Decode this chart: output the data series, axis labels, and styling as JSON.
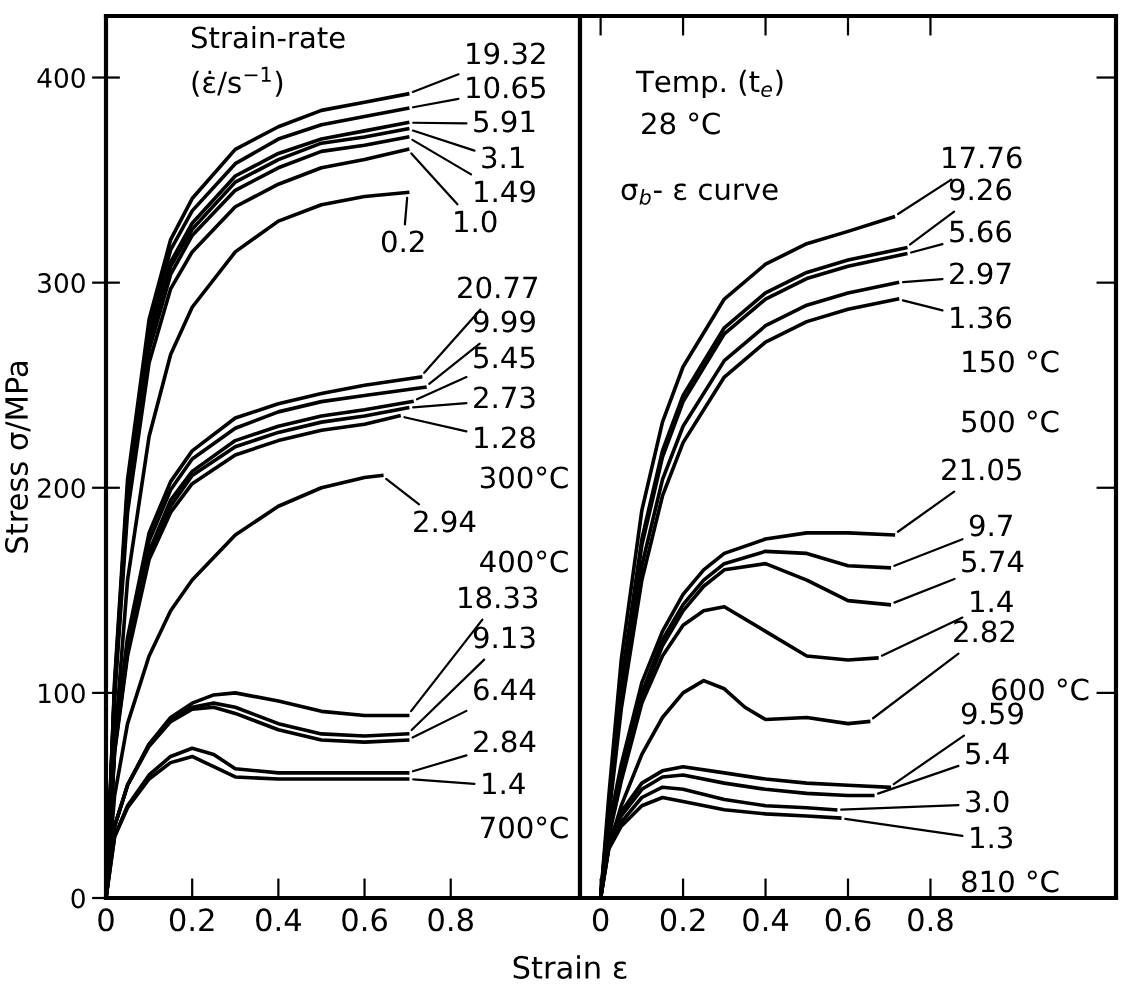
{
  "chart_data": [
    {
      "type": "line",
      "xlabel": "Strain ε",
      "ylabel": "Stress σ/MPa",
      "xlim": [
        0,
        1.1
      ],
      "ylim": [
        0,
        430
      ],
      "xticks": [
        0,
        0.2,
        0.4,
        0.6,
        0.8
      ],
      "yticks": [
        0,
        100,
        200,
        300,
        400
      ],
      "legend": "right",
      "grid": false,
      "annotations": [
        "Strain-rate",
        "(ε̇/s$^{−1}$)",
        "300°C",
        "400°C",
        "700°C"
      ],
      "series": [
        {
          "name": "19.32",
          "color": "#000000",
          "x": [
            0,
            0.02,
            0.05,
            0.1,
            0.15,
            0.2,
            0.3,
            0.4,
            0.5,
            0.6,
            0.7
          ],
          "values": [
            0,
            106,
            204,
            282,
            321,
            341,
            365,
            376,
            384,
            388,
            392
          ]
        },
        {
          "name": "10.65",
          "color": "#000000",
          "x": [
            0,
            0.02,
            0.05,
            0.1,
            0.15,
            0.2,
            0.3,
            0.4,
            0.5,
            0.6,
            0.7
          ],
          "values": [
            0,
            104,
            200,
            277,
            316,
            335,
            358,
            370,
            377,
            381,
            385
          ]
        },
        {
          "name": "5.91",
          "color": "#000000",
          "x": [
            0,
            0.02,
            0.05,
            0.1,
            0.15,
            0.2,
            0.3,
            0.4,
            0.5,
            0.6,
            0.7
          ],
          "values": [
            0,
            102,
            197,
            272,
            310,
            329,
            352,
            363,
            370,
            374,
            378
          ]
        },
        {
          "name": "3.1",
          "color": "#000000",
          "x": [
            0,
            0.02,
            0.05,
            0.1,
            0.15,
            0.2,
            0.3,
            0.4,
            0.5,
            0.6,
            0.7
          ],
          "values": [
            0,
            101,
            195,
            270,
            308,
            326,
            349,
            360,
            368,
            371,
            375
          ]
        },
        {
          "name": "1.49",
          "color": "#000000",
          "x": [
            0,
            0.02,
            0.05,
            0.1,
            0.15,
            0.2,
            0.3,
            0.4,
            0.5,
            0.6,
            0.7
          ],
          "values": [
            0,
            100,
            193,
            267,
            304,
            323,
            345,
            356,
            364,
            367,
            371
          ]
        },
        {
          "name": "1.0",
          "color": "#000000",
          "x": [
            0,
            0.02,
            0.05,
            0.1,
            0.15,
            0.2,
            0.3,
            0.4,
            0.5,
            0.6,
            0.7
          ],
          "values": [
            0,
            98,
            188,
            261,
            297,
            315,
            337,
            348,
            356,
            360,
            365
          ]
        },
        {
          "name": "0.2",
          "color": "#000000",
          "x": [
            0,
            0.02,
            0.05,
            0.1,
            0.15,
            0.2,
            0.3,
            0.4,
            0.5,
            0.6,
            0.7
          ],
          "values": [
            0,
            75,
            155,
            225,
            265,
            288,
            315,
            330,
            338,
            342,
            344
          ]
        },
        {
          "name": "20.77",
          "color": "#000000",
          "x": [
            0,
            0.02,
            0.05,
            0.1,
            0.15,
            0.2,
            0.3,
            0.4,
            0.5,
            0.6,
            0.73
          ],
          "values": [
            0,
            76,
            127,
            178,
            203,
            218,
            234,
            241,
            246,
            250,
            254
          ]
        },
        {
          "name": "9.99",
          "color": "#000000",
          "x": [
            0,
            0.02,
            0.05,
            0.1,
            0.15,
            0.2,
            0.3,
            0.4,
            0.5,
            0.6,
            0.74
          ],
          "values": [
            0,
            75,
            125,
            174,
            199,
            214,
            229,
            237,
            242,
            245,
            249
          ]
        },
        {
          "name": "5.45",
          "color": "#000000",
          "x": [
            0,
            0.02,
            0.05,
            0.1,
            0.15,
            0.2,
            0.3,
            0.4,
            0.5,
            0.6,
            0.71
          ],
          "values": [
            0,
            73,
            121,
            169,
            194,
            208,
            223,
            230,
            235,
            238,
            242
          ]
        },
        {
          "name": "2.73",
          "color": "#000000",
          "x": [
            0,
            0.02,
            0.05,
            0.1,
            0.15,
            0.2,
            0.3,
            0.4,
            0.5,
            0.6,
            0.7
          ],
          "values": [
            0,
            72,
            120,
            167,
            191,
            206,
            220,
            227,
            232,
            235,
            239
          ]
        },
        {
          "name": "1.28",
          "color": "#000000",
          "x": [
            0,
            0.02,
            0.05,
            0.1,
            0.15,
            0.2,
            0.3,
            0.4,
            0.5,
            0.6,
            0.68
          ],
          "values": [
            0,
            71,
            118,
            165,
            188,
            202,
            216,
            223,
            228,
            231,
            235
          ]
        },
        {
          "name": "2.94",
          "color": "#000000",
          "x": [
            0,
            0.02,
            0.05,
            0.1,
            0.15,
            0.2,
            0.3,
            0.4,
            0.5,
            0.6,
            0.64
          ],
          "values": [
            0,
            50,
            85,
            118,
            140,
            155,
            177,
            191,
            200,
            205,
            206
          ]
        },
        {
          "name": "18.33",
          "color": "#000000",
          "x": [
            0,
            0.02,
            0.05,
            0.1,
            0.15,
            0.2,
            0.25,
            0.3,
            0.4,
            0.5,
            0.6,
            0.7
          ],
          "values": [
            0,
            35,
            55,
            75,
            88,
            95,
            99,
            100,
            96,
            91,
            89,
            89
          ]
        },
        {
          "name": "9.13",
          "color": "#000000",
          "x": [
            0,
            0.02,
            0.05,
            0.1,
            0.15,
            0.2,
            0.25,
            0.3,
            0.4,
            0.5,
            0.6,
            0.7
          ],
          "values": [
            0,
            35,
            55,
            75,
            87,
            93,
            95,
            93,
            85,
            80,
            79,
            80
          ]
        },
        {
          "name": "6.44",
          "color": "#000000",
          "x": [
            0,
            0.02,
            0.05,
            0.1,
            0.15,
            0.2,
            0.25,
            0.3,
            0.4,
            0.5,
            0.6,
            0.7
          ],
          "values": [
            0,
            35,
            55,
            74,
            86,
            92,
            93,
            90,
            82,
            77,
            76,
            77
          ]
        },
        {
          "name": "2.84",
          "color": "#000000",
          "x": [
            0,
            0.02,
            0.05,
            0.1,
            0.15,
            0.2,
            0.25,
            0.3,
            0.4,
            0.5,
            0.6,
            0.7
          ],
          "values": [
            0,
            30,
            45,
            60,
            69,
            73,
            70,
            63,
            61,
            61,
            61,
            61
          ]
        },
        {
          "name": "1.4",
          "color": "#000000",
          "x": [
            0,
            0.02,
            0.05,
            0.1,
            0.15,
            0.2,
            0.25,
            0.3,
            0.4,
            0.5,
            0.6,
            0.7
          ],
          "values": [
            0,
            30,
            44,
            58,
            66,
            69,
            64,
            59,
            58,
            58,
            58,
            58
          ]
        }
      ]
    },
    {
      "type": "line",
      "xlim": [
        -0.05,
        1.25
      ],
      "ylim": [
        0,
        430
      ],
      "xticks": [
        0,
        0.2,
        0.4,
        0.6,
        0.8
      ],
      "yticks": [
        0,
        100,
        200,
        300,
        400
      ],
      "tick_labels": "x",
      "legend": "right",
      "grid": false,
      "annotations": [
        "Temp. (t$_{e}$)",
        "28 °C",
        "σ$_{b}$- ε curve",
        "150 °C",
        "500 °C",
        "600 °C",
        "810 °C"
      ],
      "series": [
        {
          "name": "17.76",
          "color": "#000000",
          "x": [
            0,
            0.02,
            0.05,
            0.1,
            0.15,
            0.2,
            0.3,
            0.4,
            0.5,
            0.6,
            0.71
          ],
          "values": [
            0,
            50,
            116,
            189,
            232,
            259,
            292,
            309,
            319,
            325,
            332
          ]
        },
        {
          "name": "9.26",
          "color": "#000000",
          "x": [
            0,
            0.02,
            0.05,
            0.1,
            0.15,
            0.2,
            0.3,
            0.4,
            0.5,
            0.6,
            0.74
          ],
          "values": [
            0,
            45,
            105,
            175,
            218,
            245,
            278,
            295,
            305,
            311,
            317
          ]
        },
        {
          "name": "5.66",
          "color": "#000000",
          "x": [
            0,
            0.02,
            0.05,
            0.1,
            0.15,
            0.2,
            0.3,
            0.4,
            0.5,
            0.6,
            0.74
          ],
          "values": [
            0,
            44,
            103,
            172,
            215,
            242,
            275,
            292,
            302,
            308,
            314
          ]
        },
        {
          "name": "2.97",
          "color": "#000000",
          "x": [
            0,
            0.02,
            0.05,
            0.1,
            0.15,
            0.2,
            0.3,
            0.4,
            0.5,
            0.6,
            0.72
          ],
          "values": [
            0,
            42,
            97,
            162,
            204,
            230,
            262,
            279,
            289,
            295,
            300
          ]
        },
        {
          "name": "1.36",
          "color": "#000000",
          "x": [
            0,
            0.02,
            0.05,
            0.1,
            0.15,
            0.2,
            0.3,
            0.4,
            0.5,
            0.6,
            0.72
          ],
          "values": [
            0,
            40,
            92,
            155,
            196,
            222,
            254,
            271,
            281,
            287,
            292
          ]
        },
        {
          "name": "21.05",
          "color": "#000000",
          "x": [
            0,
            0.02,
            0.05,
            0.1,
            0.15,
            0.2,
            0.25,
            0.3,
            0.4,
            0.5,
            0.6,
            0.71
          ],
          "values": [
            0,
            35,
            65,
            105,
            130,
            148,
            160,
            168,
            175,
            178,
            178,
            177
          ]
        },
        {
          "name": "9.7",
          "color": "#000000",
          "x": [
            0,
            0.02,
            0.05,
            0.1,
            0.15,
            0.2,
            0.25,
            0.3,
            0.4,
            0.5,
            0.6,
            0.7
          ],
          "values": [
            0,
            33,
            62,
            100,
            126,
            143,
            155,
            163,
            169,
            168,
            162,
            161
          ]
        },
        {
          "name": "5.74",
          "color": "#000000",
          "x": [
            0,
            0.02,
            0.05,
            0.1,
            0.15,
            0.2,
            0.25,
            0.3,
            0.4,
            0.5,
            0.6,
            0.7
          ],
          "values": [
            0,
            32,
            60,
            98,
            123,
            140,
            152,
            160,
            163,
            155,
            145,
            143
          ]
        },
        {
          "name": "1.4",
          "color": "#000000",
          "x": [
            0,
            0.02,
            0.05,
            0.1,
            0.15,
            0.2,
            0.25,
            0.3,
            0.4,
            0.5,
            0.6,
            0.67
          ],
          "values": [
            0,
            30,
            57,
            95,
            118,
            133,
            140,
            142,
            130,
            118,
            116,
            117
          ]
        },
        {
          "name": "2.82",
          "color": "#000000",
          "x": [
            0,
            0.02,
            0.05,
            0.1,
            0.15,
            0.2,
            0.25,
            0.3,
            0.35,
            0.4,
            0.5,
            0.6,
            0.65
          ],
          "values": [
            0,
            25,
            45,
            70,
            88,
            100,
            106,
            102,
            93,
            87,
            88,
            85,
            86
          ]
        },
        {
          "name": "9.59",
          "color": "#000000",
          "x": [
            0,
            0.02,
            0.05,
            0.1,
            0.15,
            0.2,
            0.3,
            0.4,
            0.5,
            0.6,
            0.7
          ],
          "values": [
            0,
            28,
            42,
            56,
            62,
            64,
            61,
            58,
            56,
            55,
            54
          ]
        },
        {
          "name": "5.4",
          "color": "#000000",
          "x": [
            0,
            0.02,
            0.05,
            0.1,
            0.15,
            0.2,
            0.3,
            0.4,
            0.5,
            0.6,
            0.66
          ],
          "values": [
            0,
            27,
            40,
            53,
            59,
            60,
            56,
            53,
            51,
            50,
            50
          ]
        },
        {
          "name": "3.0",
          "color": "#000000",
          "x": [
            0,
            0.02,
            0.05,
            0.1,
            0.15,
            0.2,
            0.3,
            0.4,
            0.5,
            0.57
          ],
          "values": [
            0,
            25,
            37,
            49,
            54,
            53,
            48,
            45,
            44,
            43
          ]
        },
        {
          "name": "1.3",
          "color": "#000000",
          "x": [
            0,
            0.02,
            0.05,
            0.1,
            0.15,
            0.2,
            0.3,
            0.4,
            0.5,
            0.58
          ],
          "values": [
            0,
            24,
            35,
            45,
            49,
            47,
            43,
            41,
            40,
            39
          ]
        }
      ]
    }
  ]
}
